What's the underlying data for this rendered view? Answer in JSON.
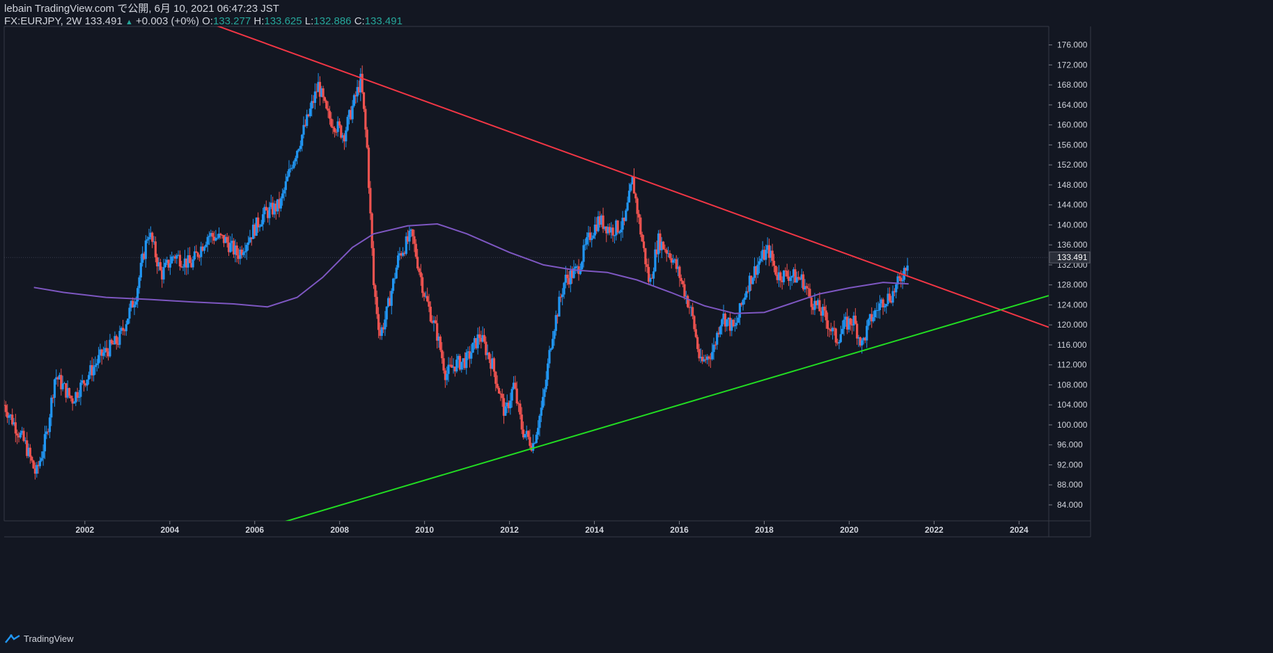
{
  "header": {
    "line1": "lebain TradingView.com で公開, 6月 10, 2021 06:47:23 JST",
    "symbol": "FX:EURJPY, 2W 133.491",
    "change_arrow": "▲",
    "change": "+0.003 (+0%)",
    "o_label": "O:",
    "o_value": "133.277",
    "h_label": "H:",
    "h_value": "133.625",
    "l_label": "L:",
    "l_value": "132.886",
    "c_label": "C:",
    "c_value": "133.491"
  },
  "footer": {
    "brand": "TradingView",
    "logo_icon": "tradingview-logo-icon"
  },
  "colors": {
    "background": "#131722",
    "up": "#2196f3",
    "down": "#ef5350",
    "ma": "#7e57c2",
    "resistance": "#f23645",
    "support": "#22dd22",
    "text": "#d1d4dc",
    "accent": "#26a69a"
  },
  "chart_data": {
    "type": "candlestick",
    "symbol": "FX:EURJPY",
    "interval": "2W",
    "x_ticks": [
      "2002",
      "2004",
      "2006",
      "2008",
      "2010",
      "2012",
      "2014",
      "2016",
      "2018",
      "2020",
      "2022",
      "2024"
    ],
    "y_ticks": [
      "84.000",
      "88.000",
      "92.000",
      "96.000",
      "100.000",
      "104.000",
      "108.000",
      "112.000",
      "116.000",
      "120.000",
      "124.000",
      "128.000",
      "132.000",
      "136.000",
      "140.000",
      "144.000",
      "148.000",
      "152.000",
      "156.000",
      "160.000",
      "164.000",
      "168.000",
      "172.000",
      "176.000"
    ],
    "xlim": [
      2000.1,
      2024.7
    ],
    "ylim": [
      80.8,
      179.7
    ],
    "last_price": "133.491",
    "price_path": [
      [
        2000.1,
        104
      ],
      [
        2000.6,
        96
      ],
      [
        2000.85,
        90
      ],
      [
        2001.1,
        98
      ],
      [
        2001.3,
        110
      ],
      [
        2001.7,
        105
      ],
      [
        2002.0,
        109
      ],
      [
        2002.4,
        114
      ],
      [
        2002.8,
        117
      ],
      [
        2003.2,
        126
      ],
      [
        2003.5,
        139
      ],
      [
        2003.8,
        130
      ],
      [
        2004.1,
        134
      ],
      [
        2004.5,
        132
      ],
      [
        2004.9,
        138
      ],
      [
        2005.3,
        137
      ],
      [
        2005.6,
        134
      ],
      [
        2005.9,
        138
      ],
      [
        2006.2,
        142
      ],
      [
        2006.6,
        144
      ],
      [
        2006.9,
        153
      ],
      [
        2007.2,
        160
      ],
      [
        2007.5,
        168
      ],
      [
        2007.7,
        162
      ],
      [
        2007.9,
        160
      ],
      [
        2008.1,
        158
      ],
      [
        2008.5,
        169
      ],
      [
        2008.65,
        155
      ],
      [
        2008.8,
        128
      ],
      [
        2008.95,
        118
      ],
      [
        2009.1,
        122
      ],
      [
        2009.4,
        134
      ],
      [
        2009.7,
        138
      ],
      [
        2010.0,
        126
      ],
      [
        2010.3,
        118
      ],
      [
        2010.5,
        110
      ],
      [
        2010.7,
        112
      ],
      [
        2011.0,
        113
      ],
      [
        2011.3,
        118
      ],
      [
        2011.6,
        112
      ],
      [
        2011.9,
        102
      ],
      [
        2012.1,
        108
      ],
      [
        2012.3,
        99
      ],
      [
        2012.55,
        96
      ],
      [
        2012.8,
        105
      ],
      [
        2013.0,
        118
      ],
      [
        2013.3,
        129
      ],
      [
        2013.6,
        131
      ],
      [
        2013.9,
        138
      ],
      [
        2014.1,
        141
      ],
      [
        2014.4,
        139
      ],
      [
        2014.7,
        140
      ],
      [
        2014.9,
        149
      ],
      [
        2015.1,
        138
      ],
      [
        2015.3,
        128
      ],
      [
        2015.5,
        137
      ],
      [
        2015.8,
        134
      ],
      [
        2016.0,
        130
      ],
      [
        2016.3,
        122
      ],
      [
        2016.5,
        112
      ],
      [
        2016.8,
        115
      ],
      [
        2017.0,
        122
      ],
      [
        2017.3,
        119
      ],
      [
        2017.6,
        128
      ],
      [
        2017.9,
        133
      ],
      [
        2018.1,
        135
      ],
      [
        2018.3,
        130
      ],
      [
        2018.6,
        130
      ],
      [
        2018.9,
        129
      ],
      [
        2019.1,
        125
      ],
      [
        2019.4,
        122
      ],
      [
        2019.7,
        117
      ],
      [
        2019.9,
        120
      ],
      [
        2020.1,
        121
      ],
      [
        2020.3,
        116
      ],
      [
        2020.5,
        121
      ],
      [
        2020.8,
        125
      ],
      [
        2021.0,
        126
      ],
      [
        2021.2,
        129
      ],
      [
        2021.4,
        133.5
      ]
    ],
    "moving_average": [
      [
        2000.8,
        127.5
      ],
      [
        2001.5,
        126.5
      ],
      [
        2002.5,
        125.5
      ],
      [
        2003.5,
        125.1
      ],
      [
        2004.5,
        124.6
      ],
      [
        2005.5,
        124.2
      ],
      [
        2006.3,
        123.6
      ],
      [
        2007.0,
        125.5
      ],
      [
        2007.6,
        129.5
      ],
      [
        2008.3,
        135.5
      ],
      [
        2008.8,
        138.2
      ],
      [
        2009.6,
        139.8
      ],
      [
        2010.3,
        140.2
      ],
      [
        2011.0,
        138.2
      ],
      [
        2012.0,
        134.5
      ],
      [
        2012.8,
        132.0
      ],
      [
        2013.5,
        131.0
      ],
      [
        2014.3,
        130.5
      ],
      [
        2015.0,
        129.0
      ],
      [
        2015.8,
        126.5
      ],
      [
        2016.6,
        123.8
      ],
      [
        2017.3,
        122.3
      ],
      [
        2018.0,
        122.5
      ],
      [
        2018.6,
        124.2
      ],
      [
        2019.3,
        126.2
      ],
      [
        2020.0,
        127.4
      ],
      [
        2020.8,
        128.5
      ],
      [
        2021.4,
        128.2
      ]
    ],
    "trendlines": [
      {
        "name": "resistance",
        "from": [
          2008.5,
          169.4
        ],
        "to": [
          2014.9,
          149.7
        ]
      },
      {
        "name": "support",
        "from": [
          2012.5,
          95.2
        ],
        "to": [
          2020.3,
          114.8
        ]
      }
    ],
    "grid": false,
    "legend": "none"
  }
}
